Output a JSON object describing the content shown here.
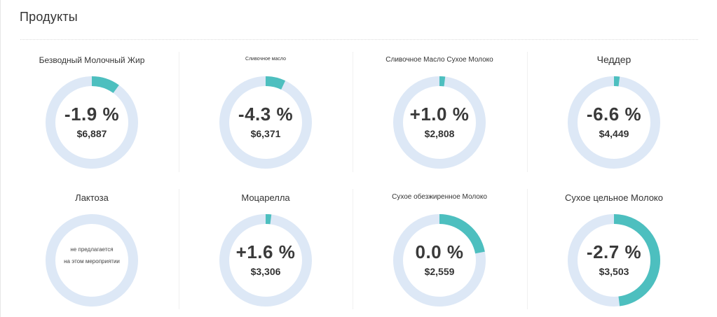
{
  "panel": {
    "title": "Продукты"
  },
  "colors": {
    "track": "#dde8f6",
    "fill": "#4dbfbf"
  },
  "products": [
    {
      "label": "Безводный Молочный Жир",
      "change": "-1.9 %",
      "value": "$6,887",
      "fill_fraction": 0.1
    },
    {
      "label": "Сливочное масло",
      "change": "-4.3 %",
      "value": "$6,371",
      "fill_fraction": 0.07
    },
    {
      "label": "Сливочное Масло Сухое Молоко",
      "change": "+1.0 %",
      "value": "$2,808",
      "fill_fraction": 0.02
    },
    {
      "label": "Чеддер",
      "change": "-6.6 %",
      "value": "$4,449",
      "fill_fraction": 0.02
    },
    {
      "label": "Лактоза",
      "note_line1": "не предлагается",
      "note_line2": "на этом мероприятии",
      "fill_fraction": 0
    },
    {
      "label": "Моцарелла",
      "change": "+1.6 %",
      "value": "$3,306",
      "fill_fraction": 0.02
    },
    {
      "label": "Сухое обезжиренное Молоко",
      "change": "0.0  %",
      "value": "$2,559",
      "fill_fraction": 0.22
    },
    {
      "label": "Сухое цельное Молоко",
      "change": "-2.7 %",
      "value": "$3,503",
      "fill_fraction": 0.48
    }
  ]
}
